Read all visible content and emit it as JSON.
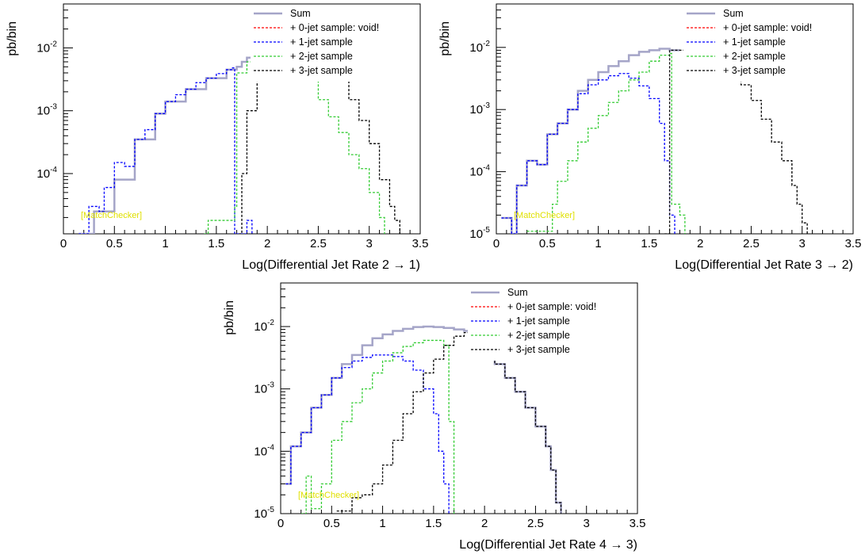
{
  "legend": {
    "sum": "Sum",
    "jet0": "+ 0-jet sample: void!",
    "jet1": "+ 1-jet sample",
    "jet2": "+ 2-jet sample",
    "jet3": "+ 3-jet sample"
  },
  "watermark": "[MatchChecker]",
  "colors": {
    "sum": "#a5a5c8",
    "jet0": "#ff0000",
    "jet1": "#0000ff",
    "jet2": "#33cc33",
    "jet3": "#000000",
    "watermark": "#e0e000"
  },
  "chart_data": [
    {
      "type": "line",
      "title": "",
      "xlabel": "Log(Differential Jet Rate 2 → 1)",
      "ylabel": "pb/bin",
      "xlim": [
        0,
        3.5
      ],
      "ylim": [
        1.1e-05,
        0.05
      ],
      "log_y": true,
      "x_ticks": [
        "0",
        "0.5",
        "1",
        "1.5",
        "2",
        "2.5",
        "3",
        "3.5"
      ],
      "y_ticks": [
        "10-4",
        "10-3",
        "10-2"
      ],
      "legend_position": "top-right",
      "series": [
        {
          "name": "Sum",
          "points": [
            [
              0.15,
              1.1e-05
            ],
            [
              0.3,
              2.5e-05
            ],
            [
              0.5,
              8e-05
            ],
            [
              0.7,
              0.00035
            ],
            [
              0.9,
              0.0009
            ],
            [
              1.0,
              0.0014
            ],
            [
              1.2,
              0.0022
            ],
            [
              1.4,
              0.0033
            ],
            [
              1.6,
              0.0045
            ],
            [
              1.7,
              0.005
            ],
            [
              1.75,
              0.006
            ],
            [
              1.8,
              0.007
            ],
            [
              1.85,
              0.008
            ],
            [
              1.87,
              0.008
            ]
          ]
        },
        {
          "name": "+ 0-jet sample: void!",
          "points": []
        },
        {
          "name": "+ 1-jet sample",
          "points": [
            [
              0.15,
              1.1e-05
            ],
            [
              0.25,
              3e-05
            ],
            [
              0.35,
              2.5e-05
            ],
            [
              0.4,
              6e-05
            ],
            [
              0.5,
              0.00015
            ],
            [
              0.6,
              0.00013
            ],
            [
              0.7,
              0.00035
            ],
            [
              0.8,
              0.0005
            ],
            [
              0.9,
              0.0009
            ],
            [
              1.0,
              0.0014
            ],
            [
              1.1,
              0.0018
            ],
            [
              1.2,
              0.0022
            ],
            [
              1.3,
              0.0028
            ],
            [
              1.4,
              0.0033
            ],
            [
              1.5,
              0.0039
            ],
            [
              1.6,
              0.0045
            ],
            [
              1.65,
              0.0048
            ],
            [
              1.68,
              1.1e-05
            ],
            [
              1.8,
              1.8e-05
            ],
            [
              1.85,
              1.1e-05
            ]
          ]
        },
        {
          "name": "+ 2-jet sample",
          "points": [
            [
              1.38,
              1.1e-05
            ],
            [
              1.42,
              1.8e-05
            ],
            [
              1.6,
              1.8e-05
            ],
            [
              1.68,
              3e-05
            ],
            [
              1.7,
              0.004
            ],
            [
              1.8,
              0.006
            ],
            [
              1.85,
              0.007
            ],
            [
              2.3,
              0.003
            ],
            [
              2.5,
              0.0015
            ],
            [
              2.6,
              0.0008
            ],
            [
              2.7,
              0.00045
            ],
            [
              2.8,
              0.0002
            ],
            [
              2.9,
              0.00012
            ],
            [
              3.0,
              5e-05
            ],
            [
              3.1,
              2e-05
            ],
            [
              3.15,
              1.1e-05
            ]
          ]
        },
        {
          "name": "+ 3-jet sample",
          "points": [
            [
              1.72,
              1.1e-05
            ],
            [
              1.75,
              0.0001
            ],
            [
              1.8,
              0.001
            ],
            [
              1.9,
              0.003
            ],
            [
              2.3,
              0.006
            ],
            [
              2.7,
              0.003
            ],
            [
              2.8,
              0.0015
            ],
            [
              2.9,
              0.0007
            ],
            [
              3.0,
              0.0003
            ],
            [
              3.1,
              8e-05
            ],
            [
              3.2,
              3e-05
            ],
            [
              3.25,
              1.8e-05
            ],
            [
              3.3,
              1.1e-05
            ]
          ]
        }
      ]
    },
    {
      "type": "line",
      "title": "",
      "xlabel": "Log(Differential Jet Rate 3 → 2)",
      "ylabel": "pb/bin",
      "xlim": [
        0,
        3.5
      ],
      "ylim": [
        1e-05,
        0.05
      ],
      "log_y": true,
      "x_ticks": [
        "0",
        "0.5",
        "1",
        "1.5",
        "2",
        "2.5",
        "3",
        "3.5"
      ],
      "y_ticks": [
        "10-5",
        "10-4",
        "10-3",
        "10-2"
      ],
      "legend_position": "top-right",
      "series": [
        {
          "name": "Sum",
          "points": [
            [
              0.05,
              1.8e-05
            ],
            [
              0.15,
              1e-05
            ],
            [
              0.2,
              6e-05
            ],
            [
              0.3,
              0.00015
            ],
            [
              0.4,
              0.00013
            ],
            [
              0.5,
              0.0004
            ],
            [
              0.6,
              0.0006
            ],
            [
              0.7,
              0.001
            ],
            [
              0.8,
              0.002
            ],
            [
              0.9,
              0.003
            ],
            [
              1.0,
              0.004
            ],
            [
              1.1,
              0.005
            ],
            [
              1.2,
              0.006
            ],
            [
              1.3,
              0.0075
            ],
            [
              1.4,
              0.0085
            ],
            [
              1.5,
              0.009
            ],
            [
              1.6,
              0.0095
            ],
            [
              1.7,
              0.009
            ],
            [
              1.8,
              0.009
            ]
          ]
        },
        {
          "name": "+ 0-jet sample: void!",
          "points": []
        },
        {
          "name": "+ 1-jet sample",
          "points": [
            [
              0.05,
              1.8e-05
            ],
            [
              0.15,
              1e-05
            ],
            [
              0.2,
              6e-05
            ],
            [
              0.3,
              0.00015
            ],
            [
              0.4,
              0.00013
            ],
            [
              0.5,
              0.0004
            ],
            [
              0.6,
              0.0006
            ],
            [
              0.7,
              0.001
            ],
            [
              0.8,
              0.0018
            ],
            [
              0.9,
              0.0025
            ],
            [
              1.0,
              0.003
            ],
            [
              1.1,
              0.0035
            ],
            [
              1.2,
              0.0038
            ],
            [
              1.3,
              0.0032
            ],
            [
              1.4,
              0.0024
            ],
            [
              1.5,
              0.0015
            ],
            [
              1.6,
              0.0006
            ],
            [
              1.65,
              0.00015
            ],
            [
              1.7,
              2e-05
            ],
            [
              1.75,
              1e-05
            ]
          ]
        },
        {
          "name": "+ 2-jet sample",
          "points": [
            [
              0.3,
              1.1e-05
            ],
            [
              0.5,
              1.1e-05
            ],
            [
              0.55,
              3e-05
            ],
            [
              0.6,
              7e-05
            ],
            [
              0.7,
              0.00015
            ],
            [
              0.8,
              0.0003
            ],
            [
              0.9,
              0.0005
            ],
            [
              1.0,
              0.0008
            ],
            [
              1.1,
              0.0013
            ],
            [
              1.2,
              0.002
            ],
            [
              1.3,
              0.003
            ],
            [
              1.4,
              0.004
            ],
            [
              1.5,
              0.006
            ],
            [
              1.6,
              0.0075
            ],
            [
              1.7,
              0.008
            ],
            [
              1.72,
              3e-05
            ],
            [
              1.8,
              2e-05
            ],
            [
              1.85,
              1e-05
            ]
          ]
        },
        {
          "name": "+ 3-jet sample",
          "points": [
            [
              1.65,
              1e-05
            ],
            [
              1.7,
              0.009
            ],
            [
              1.8,
              0.009
            ],
            [
              2.3,
              0.0035
            ],
            [
              2.4,
              0.0025
            ],
            [
              2.5,
              0.0014
            ],
            [
              2.6,
              0.0007
            ],
            [
              2.7,
              0.0003
            ],
            [
              2.8,
              0.00015
            ],
            [
              2.9,
              6e-05
            ],
            [
              2.95,
              3e-05
            ],
            [
              3.0,
              1.5e-05
            ],
            [
              3.05,
              1e-05
            ]
          ]
        }
      ]
    },
    {
      "type": "line",
      "title": "",
      "xlabel": "Log(Differential Jet Rate 4 → 3)",
      "ylabel": "pb/bin",
      "xlim": [
        0,
        3.5
      ],
      "ylim": [
        1e-05,
        0.05
      ],
      "log_y": true,
      "x_ticks": [
        "0",
        "0.5",
        "1",
        "1.5",
        "2",
        "2.5",
        "3",
        "3.5"
      ],
      "y_ticks": [
        "10-5",
        "10-4",
        "10-3",
        "10-2"
      ],
      "legend_position": "top-right",
      "series": [
        {
          "name": "Sum",
          "points": [
            [
              0.05,
              3e-05
            ],
            [
              0.1,
              0.00012
            ],
            [
              0.2,
              0.0002
            ],
            [
              0.3,
              0.0005
            ],
            [
              0.4,
              0.0008
            ],
            [
              0.5,
              0.0015
            ],
            [
              0.6,
              0.0025
            ],
            [
              0.7,
              0.0035
            ],
            [
              0.8,
              0.005
            ],
            [
              0.9,
              0.0065
            ],
            [
              1.0,
              0.0075
            ],
            [
              1.1,
              0.0085
            ],
            [
              1.2,
              0.0092
            ],
            [
              1.3,
              0.0098
            ],
            [
              1.4,
              0.01
            ],
            [
              1.5,
              0.0098
            ],
            [
              1.6,
              0.0095
            ],
            [
              1.7,
              0.009
            ],
            [
              1.8,
              0.0085
            ],
            [
              1.9,
              0.006
            ],
            [
              2.0,
              0.004
            ],
            [
              2.1,
              0.0025
            ],
            [
              2.2,
              0.0015
            ],
            [
              2.3,
              0.0009
            ],
            [
              2.4,
              0.0005
            ],
            [
              2.5,
              0.00025
            ],
            [
              2.6,
              0.00012
            ],
            [
              2.65,
              5e-05
            ],
            [
              2.7,
              1.5e-05
            ],
            [
              2.75,
              1e-05
            ]
          ]
        },
        {
          "name": "+ 0-jet sample: void!",
          "points": []
        },
        {
          "name": "+ 1-jet sample",
          "points": [
            [
              0.05,
              3e-05
            ],
            [
              0.1,
              0.00012
            ],
            [
              0.2,
              0.0002
            ],
            [
              0.3,
              0.0005
            ],
            [
              0.4,
              0.0008
            ],
            [
              0.5,
              0.0015
            ],
            [
              0.6,
              0.0022
            ],
            [
              0.7,
              0.0028
            ],
            [
              0.8,
              0.0032
            ],
            [
              0.9,
              0.0035
            ],
            [
              1.0,
              0.0035
            ],
            [
              1.1,
              0.0033
            ],
            [
              1.2,
              0.0028
            ],
            [
              1.3,
              0.002
            ],
            [
              1.4,
              0.001
            ],
            [
              1.5,
              0.0004
            ],
            [
              1.55,
              0.0001
            ],
            [
              1.6,
              3e-05
            ],
            [
              1.65,
              1e-05
            ]
          ]
        },
        {
          "name": "+ 2-jet sample",
          "points": [
            [
              0.2,
              1e-05
            ],
            [
              0.25,
              4e-05
            ],
            [
              0.3,
              1.2e-05
            ],
            [
              0.4,
              3e-05
            ],
            [
              0.5,
              0.00015
            ],
            [
              0.6,
              0.0003
            ],
            [
              0.7,
              0.0006
            ],
            [
              0.8,
              0.001
            ],
            [
              0.9,
              0.0018
            ],
            [
              1.0,
              0.0028
            ],
            [
              1.1,
              0.0038
            ],
            [
              1.2,
              0.0048
            ],
            [
              1.3,
              0.0055
            ],
            [
              1.4,
              0.006
            ],
            [
              1.5,
              0.006
            ],
            [
              1.6,
              0.005
            ],
            [
              1.65,
              0.0003
            ],
            [
              1.7,
              1e-05
            ]
          ]
        },
        {
          "name": "+ 3-jet sample",
          "points": [
            [
              0.55,
              1.1e-05
            ],
            [
              0.7,
              1.8e-05
            ],
            [
              0.8,
              2e-05
            ],
            [
              0.9,
              3e-05
            ],
            [
              1.0,
              6e-05
            ],
            [
              1.1,
              0.00015
            ],
            [
              1.2,
              0.0004
            ],
            [
              1.3,
              0.0009
            ],
            [
              1.4,
              0.0018
            ],
            [
              1.5,
              0.003
            ],
            [
              1.6,
              0.005
            ],
            [
              1.7,
              0.007
            ],
            [
              1.8,
              0.008
            ],
            [
              1.9,
              0.006
            ],
            [
              2.0,
              0.004
            ],
            [
              2.1,
              0.0025
            ],
            [
              2.2,
              0.0015
            ],
            [
              2.3,
              0.0009
            ],
            [
              2.4,
              0.0005
            ],
            [
              2.5,
              0.00025
            ],
            [
              2.6,
              0.00012
            ],
            [
              2.65,
              5e-05
            ],
            [
              2.7,
              1.5e-05
            ],
            [
              2.75,
              1e-05
            ]
          ]
        }
      ]
    }
  ]
}
